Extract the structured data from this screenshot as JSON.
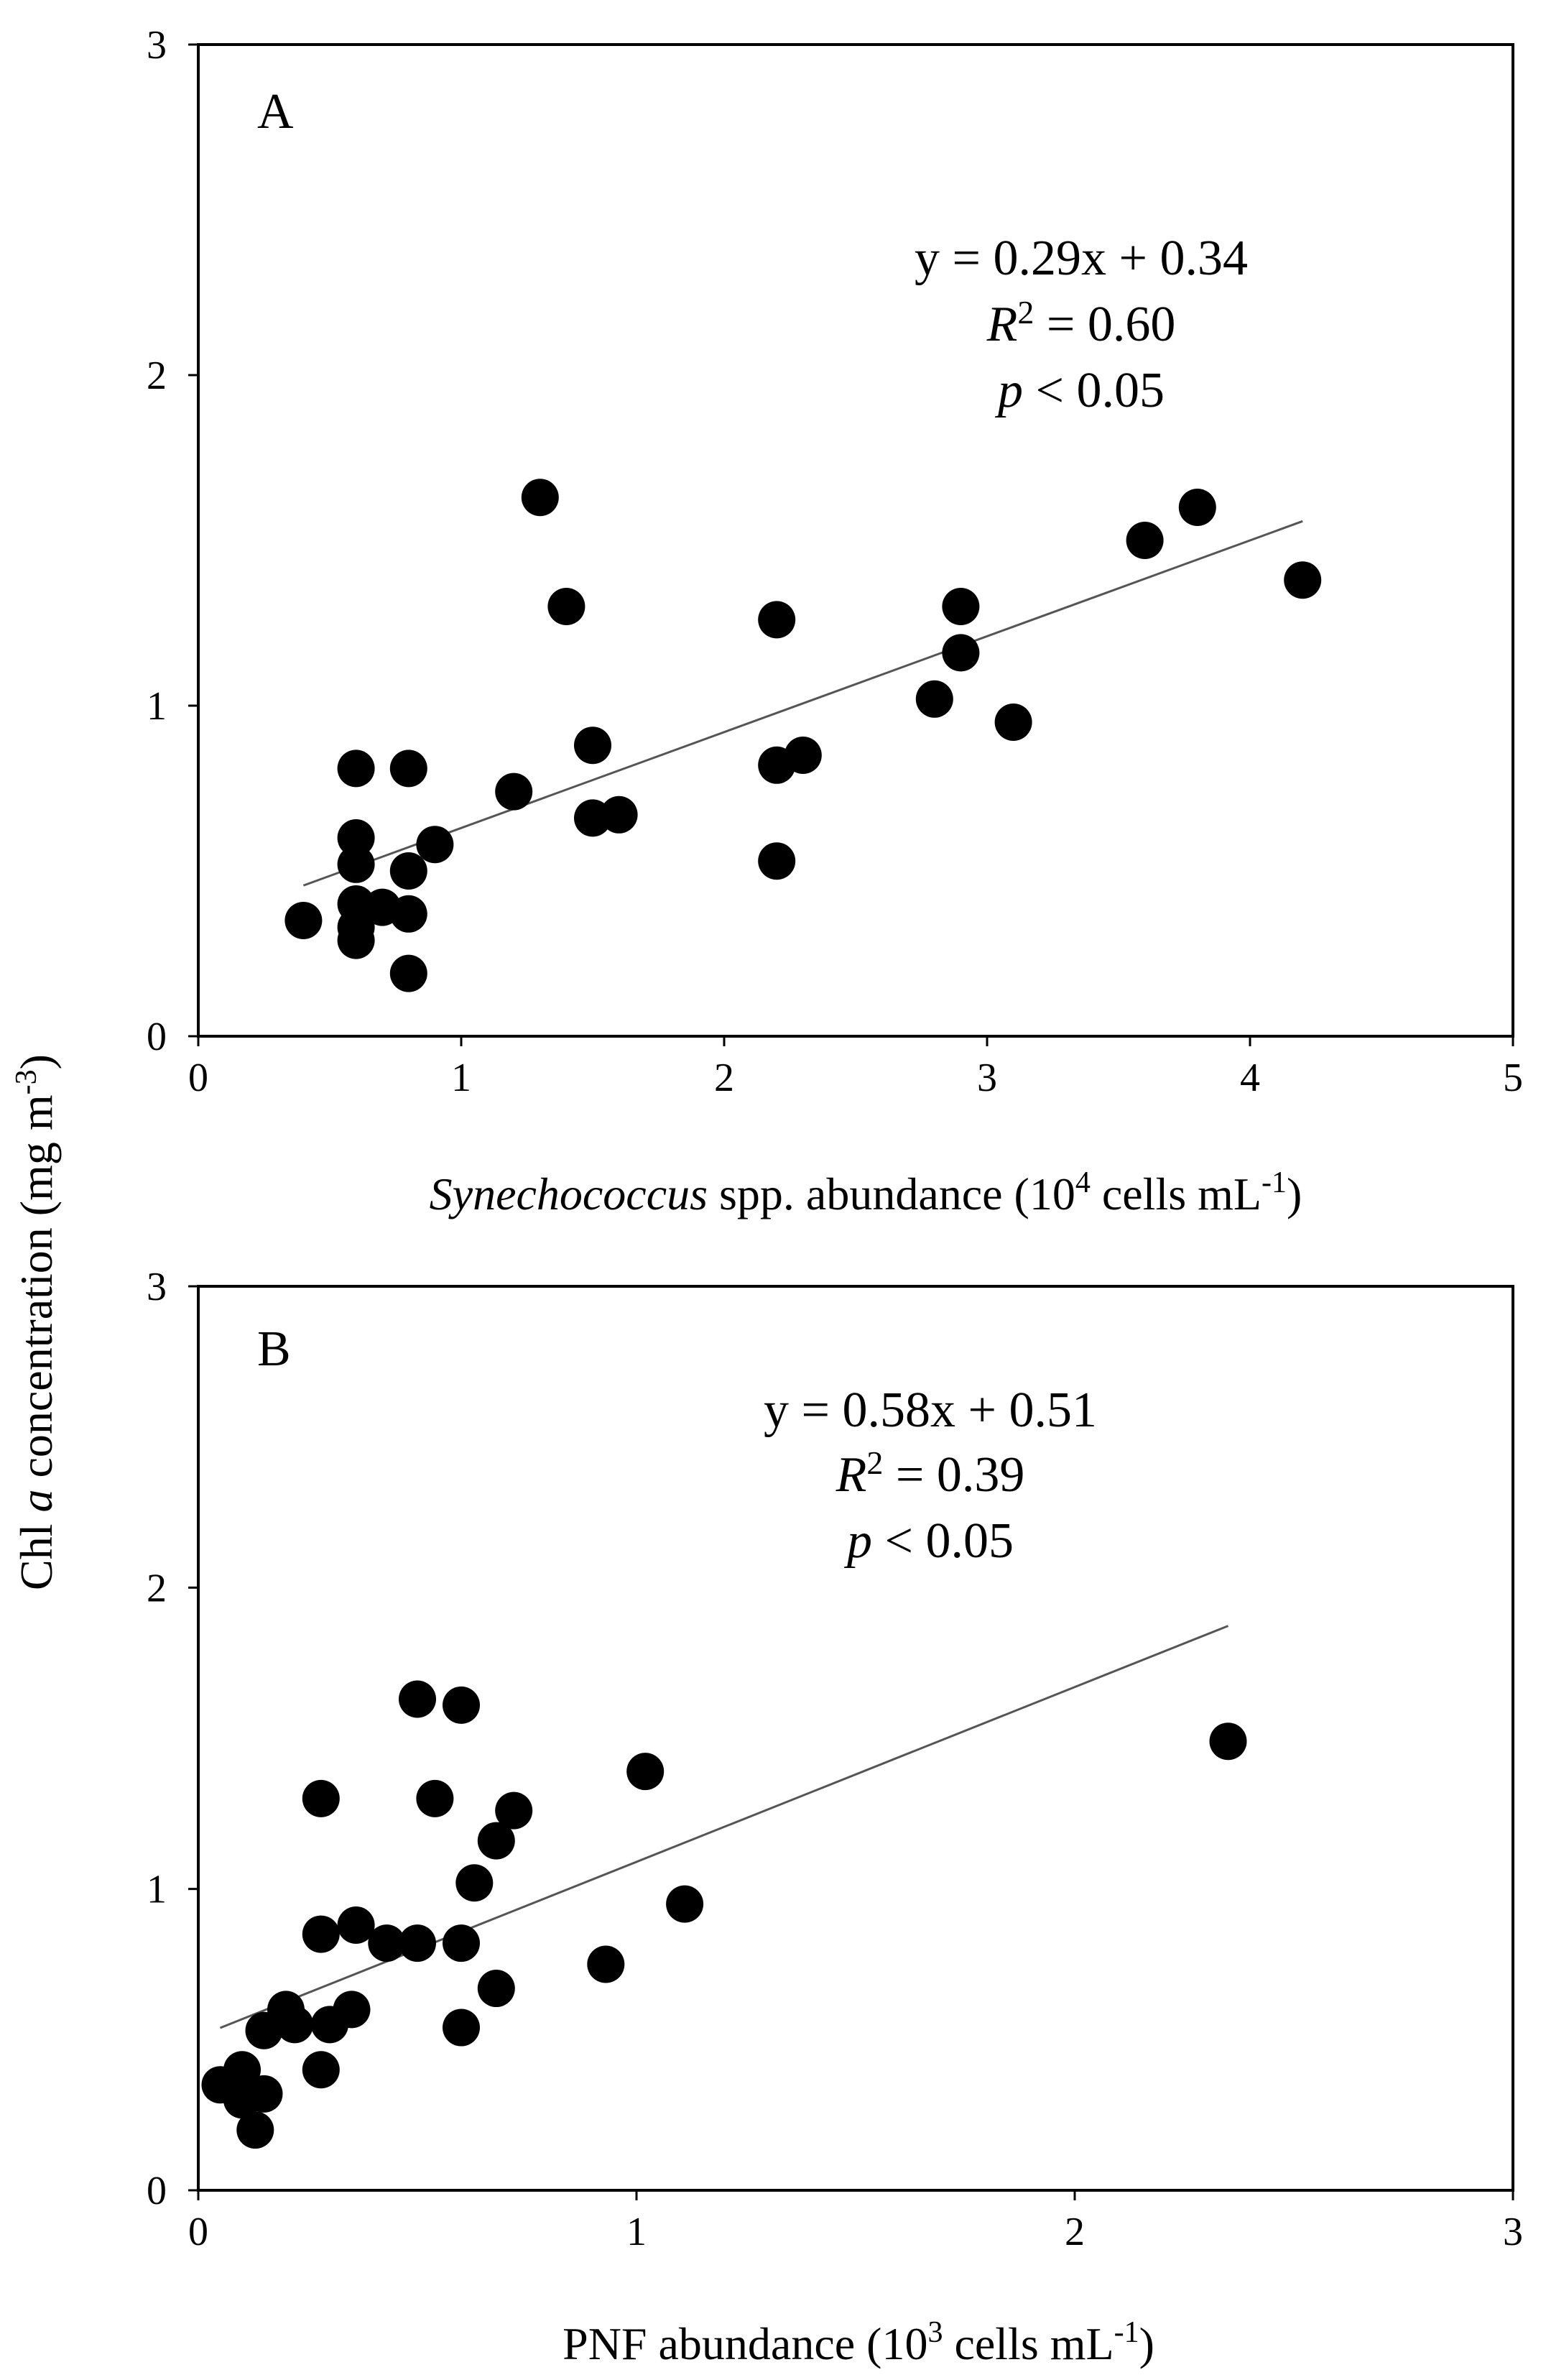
{
  "chart_data": [
    {
      "type": "scatter",
      "panel_label": "A",
      "xlabel": {
        "italic": "Synechococcus",
        "rest": " spp. abundance (10",
        "sup": "4",
        "tail": " cells mL",
        "sup2": "-1",
        "end": ")"
      },
      "xlim": [
        0,
        5
      ],
      "ylim": [
        0,
        3
      ],
      "xticks": [
        "0",
        "1",
        "2",
        "3",
        "4",
        "5"
      ],
      "yticks": [
        "0",
        "1",
        "2",
        "3"
      ],
      "equation": "y = 0.29x + 0.34",
      "r2_symbol": "R",
      "r2_sup": "2",
      "r2_value": " = 0.60",
      "p_symbol": "p",
      "p_value": " < 0.05",
      "trendline": {
        "slope": 0.29,
        "intercept": 0.34,
        "x_start": 0.4,
        "x_end": 4.2
      },
      "points": [
        [
          0.4,
          0.35
        ],
        [
          0.6,
          0.81
        ],
        [
          0.6,
          0.6
        ],
        [
          0.6,
          0.52
        ],
        [
          0.6,
          0.4
        ],
        [
          0.6,
          0.33
        ],
        [
          0.6,
          0.29
        ],
        [
          0.7,
          0.39
        ],
        [
          0.8,
          0.81
        ],
        [
          0.8,
          0.5
        ],
        [
          0.8,
          0.37
        ],
        [
          0.8,
          0.19
        ],
        [
          0.9,
          0.58
        ],
        [
          1.2,
          0.74
        ],
        [
          1.3,
          1.63
        ],
        [
          1.4,
          1.3
        ],
        [
          1.5,
          0.88
        ],
        [
          1.5,
          0.66
        ],
        [
          1.6,
          0.67
        ],
        [
          2.2,
          1.26
        ],
        [
          2.2,
          0.82
        ],
        [
          2.2,
          0.53
        ],
        [
          2.3,
          0.85
        ],
        [
          2.8,
          1.02
        ],
        [
          2.9,
          1.3
        ],
        [
          2.9,
          1.16
        ],
        [
          3.1,
          0.95
        ],
        [
          3.6,
          1.5
        ],
        [
          3.8,
          1.6
        ],
        [
          4.2,
          1.38
        ]
      ]
    },
    {
      "type": "scatter",
      "panel_label": "B",
      "xlabel": {
        "italic": "",
        "rest": "PNF abundance (10",
        "sup": "3",
        "tail": " cells mL",
        "sup2": "-1",
        "end": ")"
      },
      "xlim": [
        0,
        3
      ],
      "ylim": [
        0,
        3
      ],
      "xticks": [
        "0",
        "1",
        "2",
        "3"
      ],
      "yticks": [
        "0",
        "1",
        "2",
        "3"
      ],
      "equation": "y = 0.58x + 0.51",
      "r2_symbol": "R",
      "r2_sup": "2",
      "r2_value": " = 0.39",
      "p_symbol": "p",
      "p_value": " < 0.05",
      "trendline": {
        "slope": 0.58,
        "intercept": 0.51,
        "x_start": 0.05,
        "x_end": 2.35
      },
      "points": [
        [
          0.05,
          0.35
        ],
        [
          0.1,
          0.4
        ],
        [
          0.1,
          0.3
        ],
        [
          0.13,
          0.2
        ],
        [
          0.15,
          0.32
        ],
        [
          0.15,
          0.53
        ],
        [
          0.2,
          0.6
        ],
        [
          0.22,
          0.55
        ],
        [
          0.28,
          0.4
        ],
        [
          0.28,
          0.85
        ],
        [
          0.28,
          1.3
        ],
        [
          0.3,
          0.55
        ],
        [
          0.35,
          0.6
        ],
        [
          0.36,
          0.88
        ],
        [
          0.43,
          0.82
        ],
        [
          0.5,
          1.63
        ],
        [
          0.5,
          0.82
        ],
        [
          0.54,
          1.3
        ],
        [
          0.6,
          1.61
        ],
        [
          0.6,
          0.82
        ],
        [
          0.6,
          0.54
        ],
        [
          0.63,
          1.02
        ],
        [
          0.68,
          1.16
        ],
        [
          0.68,
          0.67
        ],
        [
          0.72,
          1.26
        ],
        [
          0.93,
          0.75
        ],
        [
          1.02,
          1.39
        ],
        [
          1.11,
          0.95
        ],
        [
          2.35,
          1.49
        ]
      ]
    }
  ],
  "shared_ylabel": {
    "pre": "Chl ",
    "italic": "a",
    "mid": " concentration (mg m",
    "sup": "-3",
    "end": ")"
  }
}
